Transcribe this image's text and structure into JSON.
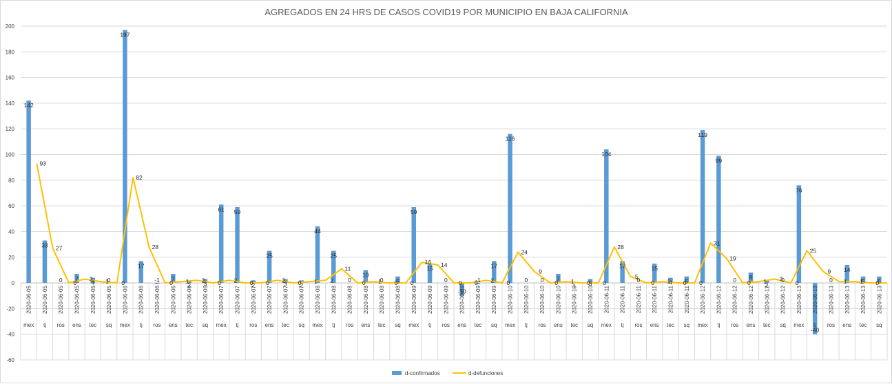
{
  "chart_data": {
    "type": "bar",
    "title": "AGREGADOS EN 24 HRS DE CASOS  COVID19 POR MUNICIPIO EN BAJA CALIFORNIA",
    "xlabel": "",
    "ylabel": "",
    "ylim": [
      -60,
      200
    ],
    "yticks": [
      -60,
      -40,
      -20,
      0,
      20,
      40,
      60,
      80,
      100,
      120,
      140,
      160,
      180,
      200
    ],
    "grid": true,
    "legend_position": "bottom",
    "categories": [
      {
        "date": "2020-06-05",
        "mun": "mex"
      },
      {
        "date": "2020-06-05",
        "mun": "tj"
      },
      {
        "date": "2020-06-05",
        "mun": "ros"
      },
      {
        "date": "2020-06-05",
        "mun": "ens"
      },
      {
        "date": "2020-06-05",
        "mun": "tec"
      },
      {
        "date": "2020-06-05",
        "mun": "sq"
      },
      {
        "date": "2020-06-06",
        "mun": "mex"
      },
      {
        "date": "2020-06-06",
        "mun": "tj"
      },
      {
        "date": "2020-06-06",
        "mun": "ros"
      },
      {
        "date": "2020-06-06",
        "mun": "ens"
      },
      {
        "date": "2020-06-06",
        "mun": "tec"
      },
      {
        "date": "2020-06-06",
        "mun": "sq"
      },
      {
        "date": "2020-06-07",
        "mun": "mex"
      },
      {
        "date": "2020-06-07",
        "mun": "tj"
      },
      {
        "date": "2020-06-07",
        "mun": "ros"
      },
      {
        "date": "2020-06-07",
        "mun": "ens"
      },
      {
        "date": "2020-06-07",
        "mun": "tec"
      },
      {
        "date": "2020-06-07",
        "mun": "sq"
      },
      {
        "date": "2020-06-08",
        "mun": "mex"
      },
      {
        "date": "2020-06-08",
        "mun": "tj"
      },
      {
        "date": "2020-06-08",
        "mun": "ros"
      },
      {
        "date": "2020-06-08",
        "mun": "ens"
      },
      {
        "date": "2020-06-08",
        "mun": "tec"
      },
      {
        "date": "2020-06-08",
        "mun": "sq"
      },
      {
        "date": "2020-06-09",
        "mun": "mex"
      },
      {
        "date": "2020-06-09",
        "mun": "tj"
      },
      {
        "date": "2020-06-09",
        "mun": "ros"
      },
      {
        "date": "2020-06-09",
        "mun": "ens"
      },
      {
        "date": "2020-06-09",
        "mun": "tec"
      },
      {
        "date": "2020-06-09",
        "mun": "sq"
      },
      {
        "date": "2020-06-10",
        "mun": "mex"
      },
      {
        "date": "2020-06-10",
        "mun": "tj"
      },
      {
        "date": "2020-06-10",
        "mun": "ros"
      },
      {
        "date": "2020-06-10",
        "mun": "ens"
      },
      {
        "date": "2020-06-10",
        "mun": "tec"
      },
      {
        "date": "2020-06-10",
        "mun": "sq"
      },
      {
        "date": "2020-06-11",
        "mun": "mex"
      },
      {
        "date": "2020-06-11",
        "mun": "tj"
      },
      {
        "date": "2020-06-11",
        "mun": "ros"
      },
      {
        "date": "2020-06-11",
        "mun": "ens"
      },
      {
        "date": "2020-06-11",
        "mun": "tec"
      },
      {
        "date": "2020-06-11",
        "mun": "sq"
      },
      {
        "date": "2020-06-12",
        "mun": "mex"
      },
      {
        "date": "2020-06-12",
        "mun": "tj"
      },
      {
        "date": "2020-06-12",
        "mun": "ros"
      },
      {
        "date": "2020-06-12",
        "mun": "ens"
      },
      {
        "date": "2020-06-12",
        "mun": "tec"
      },
      {
        "date": "2020-06-12",
        "mun": "sq"
      },
      {
        "date": "2020-06-13",
        "mun": "mex"
      },
      {
        "date": "2020-06-13",
        "mun": "tj"
      },
      {
        "date": "2020-06-13",
        "mun": "ros"
      },
      {
        "date": "2020-06-13",
        "mun": "ens"
      },
      {
        "date": "2020-06-13",
        "mun": "tec"
      },
      {
        "date": "2020-06-13",
        "mun": "sq"
      }
    ],
    "series": [
      {
        "name": "d-confirmados",
        "type": "bar",
        "color": "#5b9bd5",
        "values": [
          142,
          33,
          0,
          7,
          4,
          0,
          197,
          17,
          -1,
          7,
          2,
          3,
          61,
          59,
          2,
          25,
          3,
          2,
          44,
          25,
          0,
          10,
          0,
          5,
          59,
          15,
          0,
          -10,
          -1,
          17,
          116,
          0,
          0,
          7,
          1,
          3,
          104,
          17,
          0,
          15,
          4,
          5,
          119,
          99,
          0,
          8,
          2,
          0,
          76,
          -40,
          0,
          14,
          5,
          5
        ]
      },
      {
        "name": "d-defunciones",
        "type": "line",
        "color": "#ffc000",
        "values": [
          93,
          27,
          0,
          3,
          1,
          0,
          82,
          28,
          0,
          1,
          2,
          0,
          2,
          0,
          0,
          2,
          0,
          1,
          2,
          11,
          0,
          1,
          0,
          0,
          16,
          14,
          0,
          0,
          2,
          0,
          24,
          9,
          0,
          1,
          0,
          0,
          28,
          5,
          0,
          1,
          0,
          0,
          31,
          19,
          0,
          1,
          3,
          0,
          25,
          9,
          1,
          1,
          0,
          0
        ]
      }
    ]
  }
}
